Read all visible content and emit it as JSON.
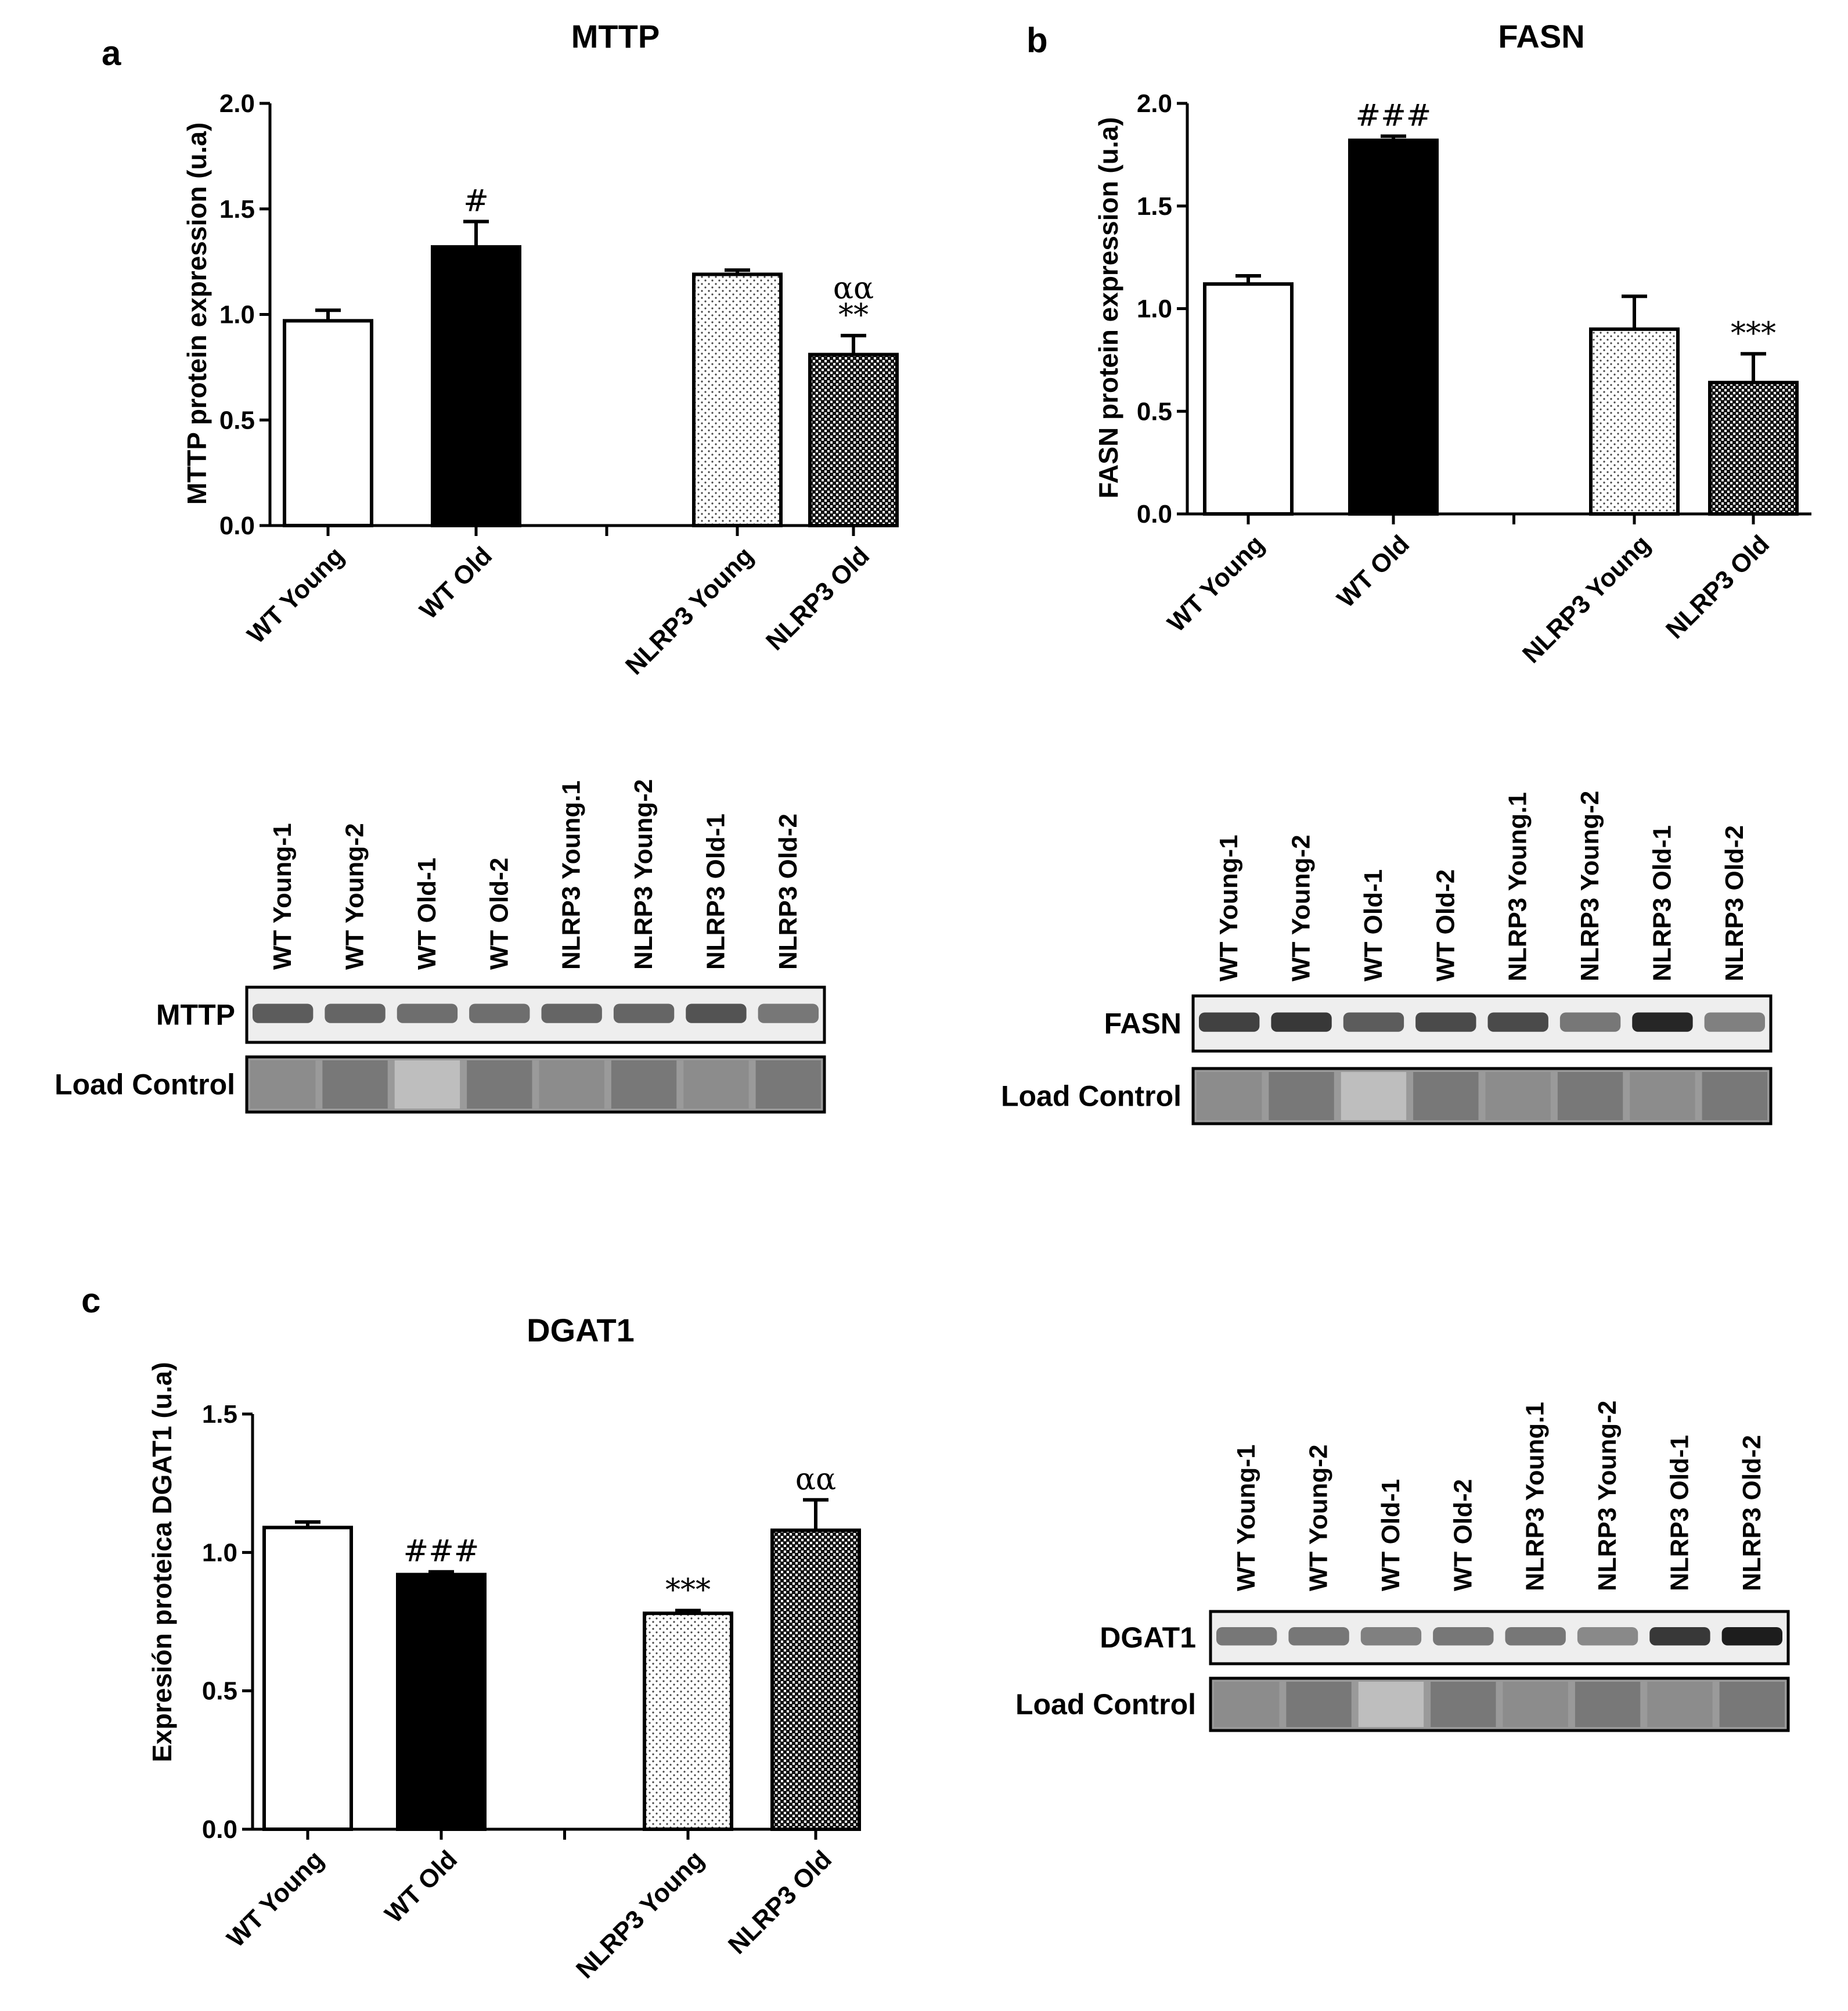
{
  "chart_data": [
    {
      "id": "a",
      "type": "bar",
      "panel_letter": "a",
      "title": "MTTP",
      "ylabel": "MTTP protein expression (u.a)",
      "xlabel": "",
      "ylim": [
        0,
        2.0
      ],
      "yticks": [
        "0.0",
        "0.5",
        "1.0",
        "1.5",
        "2.0"
      ],
      "ytick_values": [
        0,
        0.5,
        1.0,
        1.5,
        2.0
      ],
      "categories": [
        "WT Young",
        "WT Old",
        "NLRP3 Young",
        "NLRP3 Old"
      ],
      "values": [
        0.97,
        1.32,
        1.19,
        0.81
      ],
      "errors": [
        0.05,
        0.12,
        0.02,
        0.09
      ],
      "annotations": [
        "",
        "#",
        "",
        "**"
      ],
      "annotations2": [
        "",
        "",
        "",
        "αα"
      ],
      "styles": [
        "white",
        "black",
        "dots",
        "checker"
      ]
    },
    {
      "id": "b",
      "type": "bar",
      "panel_letter": "b",
      "title": "FASN",
      "ylabel": "FASN protein expression (u.a)",
      "xlabel": "",
      "ylim": [
        0,
        2.0
      ],
      "yticks": [
        "0.0",
        "0.5",
        "1.0",
        "1.5",
        "2.0"
      ],
      "ytick_values": [
        0,
        0.5,
        1.0,
        1.5,
        2.0
      ],
      "categories": [
        "WT Young",
        "WT Old",
        "NLRP3 Young",
        "NLRP3 Old"
      ],
      "values": [
        1.12,
        1.82,
        0.9,
        0.64
      ],
      "errors": [
        0.04,
        0.02,
        0.16,
        0.14
      ],
      "annotations": [
        "",
        "###",
        "",
        "***"
      ],
      "annotations2": [
        "",
        "",
        "",
        ""
      ],
      "styles": [
        "white",
        "black",
        "dots",
        "checker"
      ]
    },
    {
      "id": "c",
      "type": "bar",
      "panel_letter": "c",
      "title": "DGAT1",
      "ylabel": "Expresión proteica DGAT1 (u.a)",
      "xlabel": "",
      "ylim": [
        0,
        1.5
      ],
      "yticks": [
        "0.0",
        "0.5",
        "1.0",
        "1.5"
      ],
      "ytick_values": [
        0,
        0.5,
        1.0,
        1.5
      ],
      "categories": [
        "WT Young",
        "WT Old",
        "NLRP3 Young",
        "NLRP3 Old"
      ],
      "values": [
        1.09,
        0.92,
        0.78,
        1.08
      ],
      "errors": [
        0.02,
        0.01,
        0.01,
        0.11
      ],
      "annotations": [
        "",
        "###",
        "***",
        ""
      ],
      "annotations2": [
        "",
        "",
        "",
        "αα"
      ],
      "styles": [
        "white",
        "black",
        "dots",
        "checker"
      ]
    }
  ],
  "blots": [
    {
      "id": "blot-a",
      "lanes": [
        "WT Young-1",
        "WT Young-2",
        "WT Old-1",
        "WT Old-2",
        "NLRP3 Young.1",
        "NLRP3 Young-2",
        "NLRP3 Old-1",
        "NLRP3 Old-2"
      ],
      "target_label": "MTTP",
      "control_label": "Load Control",
      "band_intensity": [
        0.6,
        0.55,
        0.5,
        0.5,
        0.55,
        0.55,
        0.65,
        0.45
      ]
    },
    {
      "id": "blot-b",
      "lanes": [
        "WT Young-1",
        "WT Young-2",
        "WT Old-1",
        "WT Old-2",
        "NLRP3 Young.1",
        "NLRP3 Young-2",
        "NLRP3 Old-1",
        "NLRP3 Old-2"
      ],
      "target_label": "FASN",
      "control_label": "Load Control",
      "band_intensity": [
        0.75,
        0.8,
        0.6,
        0.7,
        0.7,
        0.45,
        0.9,
        0.4
      ]
    },
    {
      "id": "blot-c",
      "lanes": [
        "WT Young-1",
        "WT Young-2",
        "WT Old-1",
        "WT Old-2",
        "NLRP3 Young.1",
        "NLRP3 Young-2",
        "NLRP3 Old-1",
        "NLRP3 Old-2"
      ],
      "target_label": "DGAT1",
      "control_label": "Load Control",
      "band_intensity": [
        0.45,
        0.45,
        0.4,
        0.45,
        0.45,
        0.35,
        0.8,
        0.95
      ]
    }
  ]
}
